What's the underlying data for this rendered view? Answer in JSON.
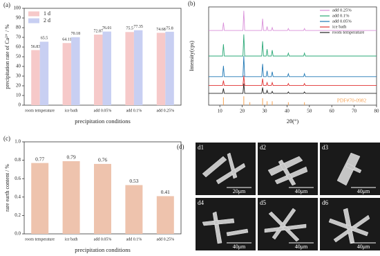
{
  "chart_data": [
    {
      "type": "bar",
      "panel": "(a)",
      "ylabel": "precipitation rate of Ca²⁺ / %",
      "xlabel": "precipitation conditions",
      "categories": [
        "room temperature",
        "ice bath",
        "add 0.05%",
        "add 0.1%",
        "add 0.25%"
      ],
      "series": [
        {
          "name": "1 d",
          "color": "#f6c9c9",
          "values": [
            56.83,
            64.11,
            72.87,
            75.5,
            74.68
          ]
        },
        {
          "name": "2 d",
          "color": "#c8cff2",
          "values": [
            65.5,
            70.18,
            76.01,
            77.35,
            75.8
          ]
        }
      ],
      "ylim": [
        0,
        100
      ],
      "yticks": [
        0,
        10,
        20,
        30,
        40,
        50,
        60,
        70,
        80,
        90,
        100
      ],
      "legend": "top-left"
    },
    {
      "type": "line",
      "panel": "(b)",
      "ylabel": "Intensity(cps)",
      "xlabel": "2θ(°)",
      "x": [
        5,
        11.2,
        11.6,
        12,
        20.3,
        20.7,
        21.1,
        28.7,
        29.1,
        29.5,
        30.7,
        31.1,
        31.5,
        33,
        33.4,
        33.8,
        40.2,
        40.6,
        41,
        47.4,
        47.8,
        48.2,
        80
      ],
      "series": [
        {
          "name": "add 0.25%",
          "color": "#d98fd9",
          "values": [
            76,
            76,
            84,
            76,
            76,
            96,
            76,
            76,
            88,
            76,
            76,
            80,
            76,
            76,
            79,
            76,
            76,
            78,
            76,
            76,
            78,
            76,
            76
          ]
        },
        {
          "name": "add 0.1%",
          "color": "#2aa876",
          "values": [
            50,
            50,
            62,
            50,
            50,
            72,
            50,
            50,
            65,
            50,
            50,
            57,
            50,
            50,
            56,
            50,
            50,
            53,
            50,
            50,
            53,
            50,
            50
          ]
        },
        {
          "name": "add 0.05%",
          "color": "#1f77b4",
          "values": [
            29,
            29,
            40,
            29,
            29,
            50,
            29,
            29,
            42,
            29,
            29,
            35,
            29,
            29,
            34,
            29,
            29,
            32,
            29,
            29,
            32,
            29,
            29
          ]
        },
        {
          "name": "ice bath",
          "color": "#e03030",
          "values": [
            20,
            20,
            25,
            20,
            20,
            30,
            20,
            20,
            27,
            20,
            20,
            23,
            20,
            20,
            23,
            20,
            20,
            22,
            20,
            20,
            22,
            20,
            20
          ]
        },
        {
          "name": "room temperature",
          "color": "#222222",
          "values": [
            12,
            12,
            17,
            12,
            12,
            22,
            12,
            12,
            18,
            12,
            12,
            15,
            12,
            12,
            14,
            12,
            12,
            13.5,
            12,
            12,
            13.5,
            12,
            12
          ]
        }
      ],
      "reference": {
        "name": "PDF#70-0982",
        "color": "#f5a050",
        "x": [
          11.6,
          20.7,
          23.4,
          29.1,
          31.1,
          33.4,
          40.6,
          47.8
        ],
        "values": [
          8,
          9,
          3,
          7,
          4,
          4,
          3,
          3
        ]
      },
      "xlim": [
        5,
        80
      ],
      "xticks": [
        10,
        20,
        30,
        40,
        50,
        60,
        70,
        80
      ],
      "ylim": [
        0,
        100
      ],
      "legend": "top-right"
    },
    {
      "type": "bar",
      "panel": "(c)",
      "ylabel": "rare earth content / %",
      "xlabel": "precipitation conditions",
      "categories": [
        "room temperature",
        "ice bath",
        "add 0.05%",
        "add 0.1%",
        "add 0.25%"
      ],
      "series": [
        {
          "color": "#eec3ad",
          "values": [
            0.77,
            0.79,
            0.76,
            0.53,
            0.41
          ]
        }
      ],
      "ylim": [
        0,
        1
      ],
      "yticks": [
        {
          "value": 0,
          "label": "0.0"
        },
        0.2,
        0.4,
        0.6,
        0.8,
        {
          "value": 1,
          "label": "1.0"
        }
      ]
    }
  ],
  "sem": {
    "panel": "(d)",
    "images": [
      {
        "label": "d1",
        "scale": "20μm"
      },
      {
        "label": "d2",
        "scale": "40μm"
      },
      {
        "label": "d3",
        "scale": "40μm"
      },
      {
        "label": "d4",
        "scale": "40μm"
      },
      {
        "label": "d5",
        "scale": "40μm"
      },
      {
        "label": "d6",
        "scale": "40μm"
      }
    ]
  }
}
